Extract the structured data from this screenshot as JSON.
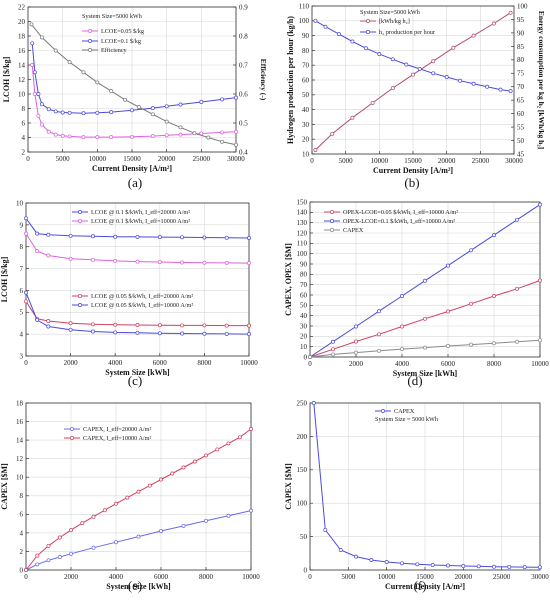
{
  "colors": {
    "lcoe_005": "#e060e0",
    "lcoe_01": "#4a4ae0",
    "efficiency": "#7a7a7a",
    "h2": "#4a4ae0",
    "energy": "#b05070",
    "capex_gray": "#8a8a8a",
    "panel_e_20000": "#6a6ae8",
    "panel_e_10000": "#d04060",
    "grid": "#d8d8d8",
    "axis": "#333333"
  },
  "chart_data": [
    {
      "id": "a",
      "caption": "(a)",
      "type": "line",
      "xlabel": "Current Density  [A/m²]",
      "ylabel": "LCOH  [$/kg]",
      "y2label": "Efficiency (-)",
      "xlim": [
        0,
        30000
      ],
      "ylim": [
        2,
        22
      ],
      "y2lim": [
        0.4,
        0.9
      ],
      "xticks": [
        0,
        5000,
        10000,
        15000,
        20000,
        25000,
        30000
      ],
      "yticks": [
        2,
        4,
        6,
        8,
        10,
        12,
        14,
        16,
        18,
        20,
        22
      ],
      "y2ticks": [
        0.4,
        0.5,
        0.6,
        0.7,
        0.8,
        0.9
      ],
      "annotation": "System Size=5000 kWh",
      "legend_position": "top-center",
      "series": [
        {
          "name": "LCOE=0.05 $/kg",
          "color": "lcoe_005",
          "axis": "left",
          "x": [
            600,
            1000,
            1500,
            2000,
            3000,
            4000,
            5000,
            6000,
            8000,
            10000,
            12000,
            15000,
            18000,
            20000,
            22000,
            25000,
            28000,
            30000
          ],
          "y": [
            14.0,
            10.0,
            7.0,
            5.8,
            4.8,
            4.4,
            4.25,
            4.15,
            4.05,
            4.05,
            4.05,
            4.1,
            4.2,
            4.3,
            4.4,
            4.55,
            4.7,
            4.8
          ]
        },
        {
          "name": "LCOE=0.1 $/kg",
          "color": "lcoe_01",
          "axis": "left",
          "x": [
            600,
            1000,
            1500,
            2000,
            3000,
            4000,
            5000,
            6000,
            8000,
            10000,
            12000,
            15000,
            18000,
            20000,
            22000,
            25000,
            28000,
            30000
          ],
          "y": [
            17.0,
            13.0,
            10.0,
            8.6,
            7.9,
            7.6,
            7.45,
            7.4,
            7.35,
            7.4,
            7.5,
            7.75,
            8.05,
            8.3,
            8.55,
            8.9,
            9.25,
            9.5
          ]
        },
        {
          "name": "Efficiency",
          "color": "efficiency",
          "axis": "right",
          "x": [
            500,
            2000,
            4000,
            6000,
            8000,
            10000,
            12000,
            14000,
            16000,
            18000,
            20000,
            22000,
            24000,
            26000,
            28000,
            30000
          ],
          "y": [
            0.84,
            0.795,
            0.75,
            0.71,
            0.675,
            0.64,
            0.61,
            0.58,
            0.555,
            0.53,
            0.505,
            0.485,
            0.465,
            0.45,
            0.435,
            0.425
          ]
        }
      ]
    },
    {
      "id": "b",
      "caption": "(b)",
      "type": "line",
      "xlabel": "Current Density  [A/m²]",
      "ylabel": "Hydrogen production per hour (kg/h)",
      "y2label": "Energy consumption per kg h₂ [kWh/kg h₂]",
      "xlim": [
        0,
        30000
      ],
      "ylim": [
        10,
        110
      ],
      "y2lim": [
        45,
        100
      ],
      "xticks": [
        0,
        5000,
        10000,
        15000,
        20000,
        25000,
        30000
      ],
      "yticks": [
        10,
        20,
        30,
        40,
        50,
        60,
        70,
        80,
        90,
        100,
        110
      ],
      "y2ticks": [
        45,
        50,
        55,
        60,
        65,
        70,
        75,
        80,
        85,
        90,
        95,
        100
      ],
      "annotation": "System Size=5000 kWh",
      "legend_position": "top-center",
      "series": [
        {
          "name": "[kWh/kg h₂]",
          "color": "energy",
          "axis": "right",
          "x": [
            500,
            3000,
            6000,
            9000,
            12000,
            15000,
            18000,
            21000,
            24000,
            27000,
            29500
          ],
          "y": [
            46.5,
            52.5,
            58.5,
            64.0,
            69.5,
            74.5,
            79.5,
            84.5,
            89.0,
            93.5,
            97.5
          ]
        },
        {
          "name": "h₂ production per hour",
          "color": "h2",
          "axis": "left",
          "x": [
            500,
            2000,
            4000,
            6000,
            8000,
            10000,
            12000,
            14000,
            16000,
            18000,
            20000,
            22000,
            24000,
            26000,
            28000,
            29500
          ],
          "y": [
            100,
            96,
            91,
            86,
            81.5,
            77.5,
            74,
            70.5,
            67.5,
            64.5,
            62,
            59.5,
            57.5,
            55.5,
            53.5,
            52.5
          ]
        }
      ]
    },
    {
      "id": "c",
      "caption": "(c)",
      "type": "line",
      "xlabel": "System Size [kWh]",
      "ylabel": "LCOH  [$/kg]",
      "xlim": [
        0,
        10000
      ],
      "ylim": [
        3,
        10
      ],
      "xticks": [
        0,
        2000,
        4000,
        6000,
        8000,
        10000
      ],
      "yticks": [
        3,
        4,
        5,
        6,
        7,
        8,
        9,
        10
      ],
      "legend_position": "top-center and middle-center",
      "series": [
        {
          "name": "LCOE @ 0.1 $/kWh, I_eff=20000 A/m²",
          "color": "lcoe_01",
          "axis": "left",
          "x": [
            0,
            500,
            1000,
            2000,
            3000,
            4000,
            5000,
            6000,
            7000,
            8000,
            9000,
            10000
          ],
          "y": [
            9.3,
            8.6,
            8.55,
            8.5,
            8.48,
            8.46,
            8.45,
            8.44,
            8.43,
            8.42,
            8.41,
            8.4
          ]
        },
        {
          "name": "LCOE @ 0.1 $/kWh, I_eff=10000 A/m²",
          "color": "lcoe_005",
          "axis": "left",
          "x": [
            0,
            500,
            1000,
            2000,
            3000,
            4000,
            5000,
            6000,
            7000,
            8000,
            9000,
            10000
          ],
          "y": [
            8.6,
            7.8,
            7.6,
            7.45,
            7.4,
            7.35,
            7.32,
            7.3,
            7.28,
            7.27,
            7.26,
            7.25
          ]
        },
        {
          "name": "LCOE @ 0.05 $/kWh, I_eff=20000 A/m²",
          "color": "panel_e_10000",
          "axis": "left",
          "x": [
            0,
            500,
            1000,
            2000,
            3000,
            4000,
            5000,
            6000,
            7000,
            8000,
            9000,
            10000
          ],
          "y": [
            5.5,
            4.7,
            4.6,
            4.5,
            4.45,
            4.43,
            4.42,
            4.41,
            4.4,
            4.4,
            4.39,
            4.39
          ]
        },
        {
          "name": "LCOE @ 0.05 $/kWh, I_eff=10000 A/m²",
          "color": "lcoe_01",
          "axis": "left",
          "x": [
            0,
            500,
            1000,
            2000,
            3000,
            4000,
            5000,
            6000,
            7000,
            8000,
            9000,
            10000
          ],
          "y": [
            5.9,
            4.65,
            4.35,
            4.2,
            4.12,
            4.08,
            4.06,
            4.04,
            4.03,
            4.02,
            4.01,
            4.0
          ]
        }
      ]
    },
    {
      "id": "d",
      "caption": "(d)",
      "type": "line",
      "xlabel": "System Size [kWh]",
      "ylabel": "CAPEX, OPEX  [$M]",
      "xlim": [
        0,
        10000
      ],
      "ylim": [
        0,
        150
      ],
      "xticks": [
        0,
        2000,
        4000,
        6000,
        8000,
        10000
      ],
      "yticks": [
        0,
        10,
        20,
        30,
        40,
        50,
        60,
        70,
        80,
        90,
        100,
        110,
        120,
        130,
        140,
        150
      ],
      "legend_position": "top-left",
      "series": [
        {
          "name": "OPEX-LCOE=0.05 $/kWh, I_eff=10000 A/m²",
          "color": "panel_e_10000",
          "axis": "left",
          "x": [
            0,
            1000,
            2000,
            3000,
            4000,
            5000,
            6000,
            7000,
            8000,
            9000,
            10000
          ],
          "y": [
            0,
            7.5,
            15,
            22,
            29.5,
            37,
            44,
            51.5,
            59,
            66,
            74
          ]
        },
        {
          "name": "OPEX-LCOE=0.1 $/kWh, I_eff=10000 A/m²",
          "color": "lcoe_01",
          "axis": "left",
          "x": [
            0,
            1000,
            2000,
            3000,
            4000,
            5000,
            6000,
            7000,
            8000,
            9000,
            10000
          ],
          "y": [
            0,
            14.8,
            29.5,
            44.3,
            59,
            73.8,
            88.5,
            103.3,
            118,
            132.8,
            147.5
          ]
        },
        {
          "name": "CAPEX",
          "color": "capex_gray",
          "axis": "left",
          "x": [
            0,
            1000,
            2000,
            3000,
            4000,
            5000,
            6000,
            7000,
            8000,
            9000,
            10000
          ],
          "y": [
            0,
            2.5,
            4.3,
            6,
            7.6,
            9.1,
            10.6,
            12,
            13.4,
            14.8,
            16.2
          ]
        }
      ]
    },
    {
      "id": "e",
      "caption": "(e)",
      "type": "line",
      "xlabel": "System Size [kWh]",
      "ylabel": "CAPEX  [$M]",
      "xlim": [
        0,
        10000
      ],
      "ylim": [
        0,
        18
      ],
      "xticks": [
        0,
        2000,
        4000,
        6000,
        8000,
        10000
      ],
      "yticks": [
        0,
        2,
        4,
        6,
        8,
        10,
        12,
        14,
        16,
        18
      ],
      "legend_position": "top-left",
      "series": [
        {
          "name": "CAPEX, I_eff=20000 A/m²",
          "color": "panel_e_20000",
          "axis": "left",
          "x": [
            0,
            500,
            1000,
            1500,
            2000,
            3000,
            4000,
            5000,
            6000,
            7000,
            8000,
            9000,
            10000
          ],
          "y": [
            0,
            0.6,
            1.05,
            1.4,
            1.75,
            2.4,
            3.0,
            3.6,
            4.2,
            4.75,
            5.3,
            5.85,
            6.4
          ]
        },
        {
          "name": "CAPEX, I_eff=10000 A/m²",
          "color": "panel_e_10000",
          "axis": "left",
          "x": [
            0,
            500,
            1000,
            1500,
            2000,
            2500,
            3000,
            3500,
            4000,
            4500,
            5000,
            5500,
            6000,
            6500,
            7000,
            7500,
            8000,
            8500,
            9000,
            9500,
            10000
          ],
          "y": [
            0,
            1.55,
            2.6,
            3.5,
            4.3,
            5.05,
            5.75,
            6.45,
            7.15,
            7.8,
            8.45,
            9.1,
            9.75,
            10.4,
            11.05,
            11.7,
            12.35,
            13.0,
            13.65,
            14.3,
            15.2
          ]
        }
      ]
    },
    {
      "id": "f",
      "caption": "(f)",
      "type": "line",
      "xlabel": "Current Density  [A/m²]",
      "ylabel": "CAPEX  [$M]",
      "xlim": [
        0,
        30000
      ],
      "ylim": [
        0,
        250
      ],
      "xticks": [
        0,
        5000,
        10000,
        15000,
        20000,
        25000,
        30000
      ],
      "yticks": [
        0,
        50,
        100,
        150,
        200,
        250
      ],
      "annotation": "System Size = 5000 kWh",
      "legend_position": "top-center",
      "series": [
        {
          "name": "CAPEX",
          "color": "lcoe_01",
          "axis": "left",
          "x": [
            500,
            2000,
            4000,
            6000,
            8000,
            10000,
            12000,
            14000,
            16000,
            18000,
            20000,
            22000,
            24000,
            26000,
            28000,
            30000
          ],
          "y": [
            250,
            60,
            30,
            20,
            15,
            12,
            10,
            8.6,
            7.5,
            6.7,
            6,
            5.5,
            5,
            4.6,
            4.3,
            4
          ]
        }
      ]
    }
  ]
}
